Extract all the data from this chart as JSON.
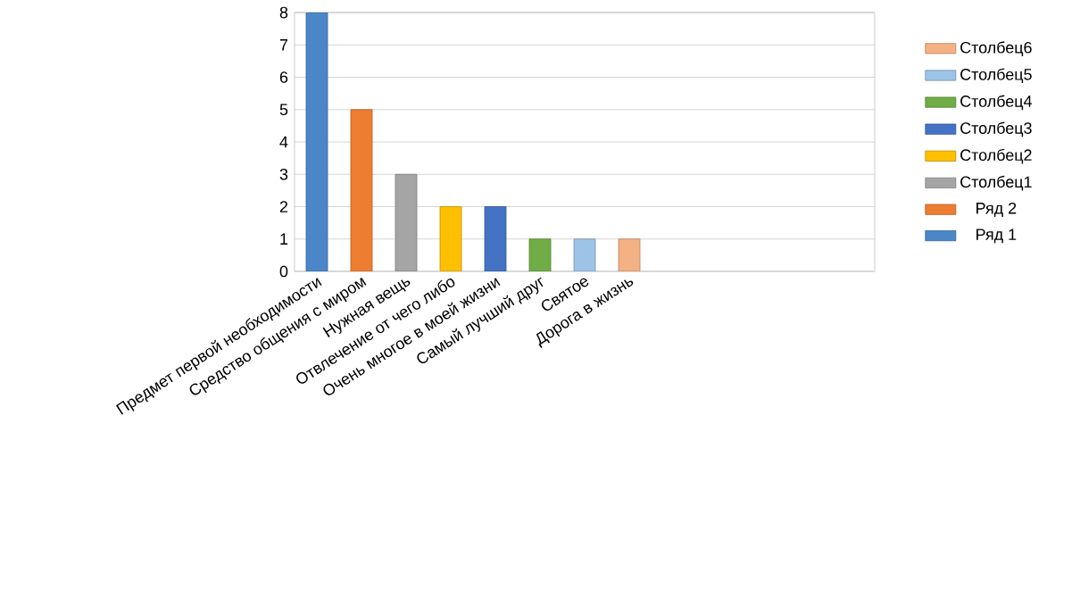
{
  "chart_data": {
    "type": "bar",
    "categories": [
      "Предмет первой необходимости",
      "Средство общения с миром",
      "Нужная вещь",
      "Отвлечение от чего либо",
      "Очень многое в моей жизни",
      "Самый лучший друг",
      "Святое",
      "Дорога в жизнь"
    ],
    "series": [
      {
        "name": "Ряд 1",
        "color": "#4a86c8",
        "values": [
          8,
          null,
          null,
          null,
          null,
          null,
          null,
          null
        ]
      },
      {
        "name": "Ряд 2",
        "color": "#ed7d31",
        "values": [
          null,
          5,
          null,
          null,
          null,
          null,
          null,
          null
        ]
      },
      {
        "name": "Столбец1",
        "color": "#a5a5a5",
        "values": [
          null,
          null,
          3,
          null,
          null,
          null,
          null,
          null
        ]
      },
      {
        "name": "Столбец2",
        "color": "#ffc000",
        "values": [
          null,
          null,
          null,
          2,
          null,
          null,
          null,
          null
        ]
      },
      {
        "name": "Столбец3",
        "color": "#4472c4",
        "values": [
          null,
          null,
          null,
          null,
          2,
          null,
          null,
          null
        ]
      },
      {
        "name": "Столбец4",
        "color": "#70ad47",
        "values": [
          null,
          null,
          null,
          null,
          null,
          1,
          null,
          null
        ]
      },
      {
        "name": "Столбец5",
        "color": "#9dc3e6",
        "values": [
          null,
          null,
          null,
          null,
          null,
          null,
          1,
          null
        ]
      },
      {
        "name": "Столбец6",
        "color": "#f4b183",
        "values": [
          null,
          null,
          null,
          null,
          null,
          null,
          null,
          1
        ]
      }
    ],
    "ylim": [
      0,
      8
    ],
    "yticks": [
      0,
      1,
      2,
      3,
      4,
      5,
      6,
      7,
      8
    ],
    "grid": "y",
    "legend": "right"
  }
}
